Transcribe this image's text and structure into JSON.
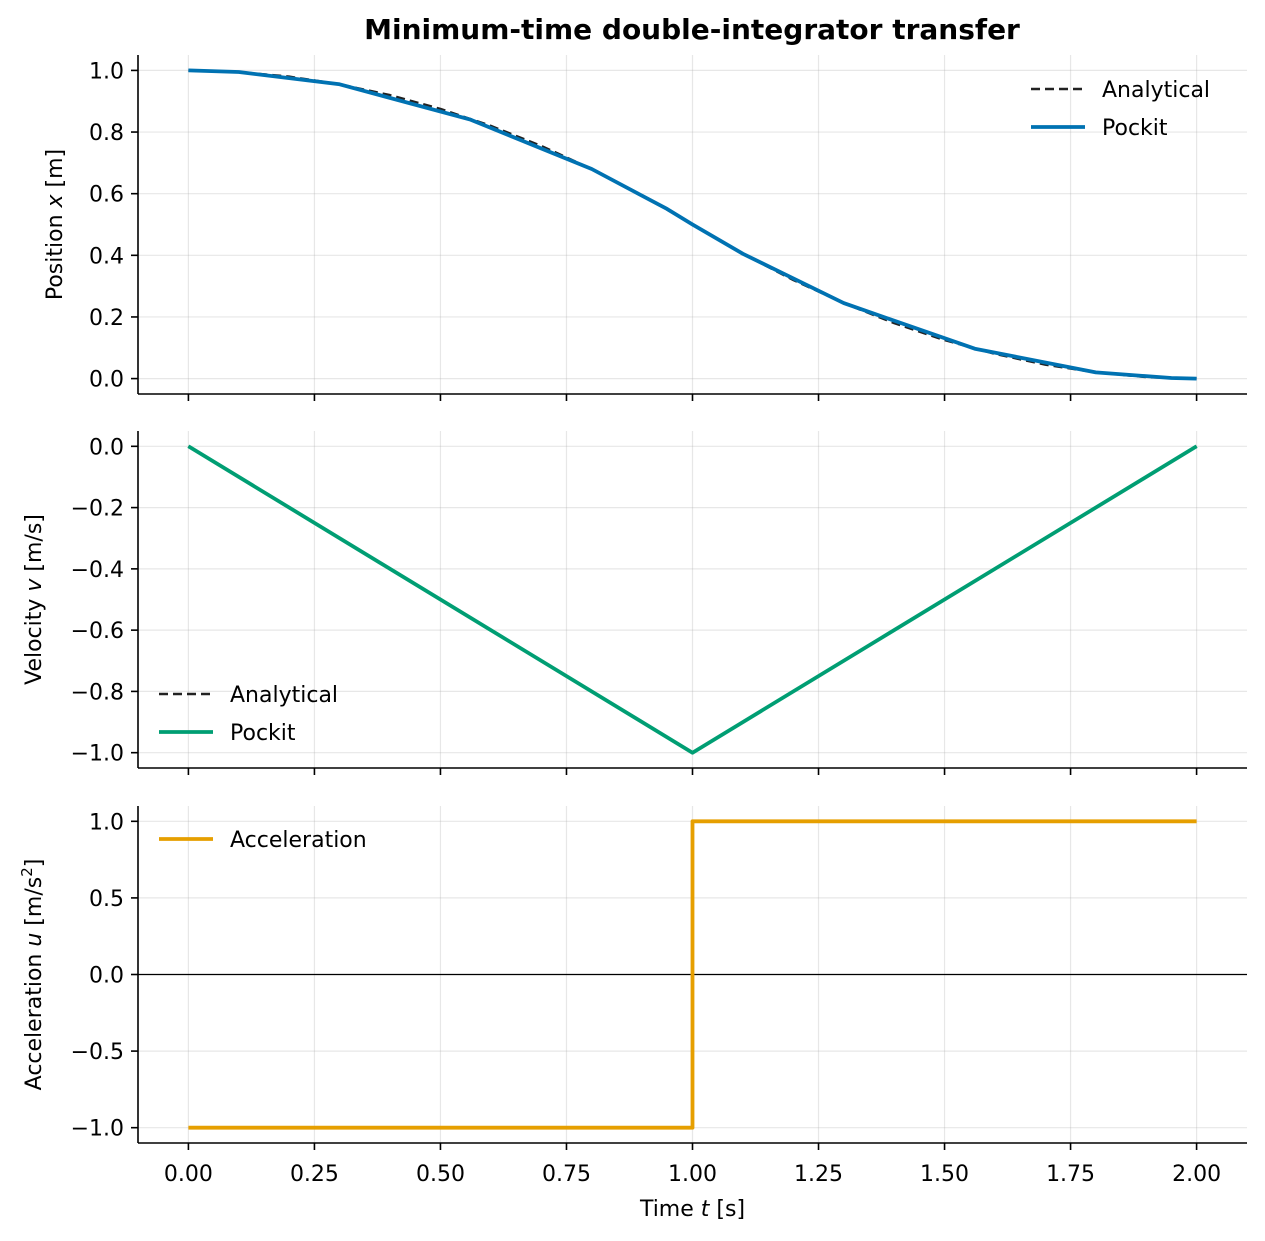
{
  "figure": {
    "title": "Minimum-time double-integrator transfer"
  },
  "chart_data": [
    {
      "type": "line",
      "name": "position",
      "title": "Minimum-time double-integrator transfer",
      "xlabel": "",
      "ylabel_prefix": "Position ",
      "ylabel_var": "x",
      "ylabel_suffix": " [m]",
      "xlim": [
        -0.1,
        2.1
      ],
      "ylim": [
        -0.05,
        1.05
      ],
      "xticks": [
        0,
        0.25,
        0.5,
        0.75,
        1.0,
        1.25,
        1.5,
        1.75,
        2.0
      ],
      "yticks": [
        0.0,
        0.2,
        0.4,
        0.6,
        0.8,
        1.0
      ],
      "ytick_labels": [
        "0.0",
        "0.2",
        "0.4",
        "0.6",
        "0.8",
        "1.0"
      ],
      "grid": true,
      "legend_position": "top-right",
      "series": [
        {
          "name": "Analytical",
          "style": "dashed",
          "color": "#222222",
          "x": [
            0,
            0.1,
            0.2,
            0.3,
            0.4,
            0.5,
            0.6,
            0.7,
            0.8,
            0.9,
            1.0,
            1.1,
            1.2,
            1.3,
            1.4,
            1.5,
            1.6,
            1.7,
            1.8,
            1.9,
            2.0
          ],
          "y": [
            1.0,
            0.995,
            0.98,
            0.955,
            0.92,
            0.875,
            0.82,
            0.755,
            0.68,
            0.595,
            0.5,
            0.405,
            0.32,
            0.245,
            0.18,
            0.125,
            0.08,
            0.045,
            0.02,
            0.005,
            0.0
          ]
        },
        {
          "name": "Pockit",
          "style": "solid",
          "color": "#0072B2",
          "x": [
            0,
            0.1,
            0.3,
            0.56,
            0.8,
            0.95,
            1.0,
            1.1,
            1.3,
            1.56,
            1.8,
            1.95,
            2.0
          ],
          "y": [
            1.0,
            0.995,
            0.955,
            0.84,
            0.68,
            0.55,
            0.5,
            0.405,
            0.245,
            0.097,
            0.02,
            0.002,
            0.0
          ]
        }
      ]
    },
    {
      "type": "line",
      "name": "velocity",
      "xlabel": "",
      "ylabel_prefix": "Velocity ",
      "ylabel_var": "v",
      "ylabel_suffix": " [m/s]",
      "xlim": [
        -0.1,
        2.1
      ],
      "ylim": [
        -1.05,
        0.05
      ],
      "xticks": [
        0,
        0.25,
        0.5,
        0.75,
        1.0,
        1.25,
        1.5,
        1.75,
        2.0
      ],
      "yticks": [
        0.0,
        -0.2,
        -0.4,
        -0.6,
        -0.8,
        -1.0
      ],
      "ytick_labels": [
        "0.0",
        "−0.2",
        "−0.4",
        "−0.6",
        "−0.8",
        "−1.0"
      ],
      "grid": true,
      "legend_position": "bottom-left",
      "series": [
        {
          "name": "Analytical",
          "style": "dashed",
          "color": "#222222",
          "x": [
            0,
            1.0,
            2.0
          ],
          "y": [
            0.0,
            -1.0,
            0.0
          ]
        },
        {
          "name": "Pockit",
          "style": "solid",
          "color": "#009E73",
          "x": [
            0,
            1.0,
            2.0
          ],
          "y": [
            0.0,
            -1.0,
            0.0
          ]
        }
      ]
    },
    {
      "type": "line",
      "name": "acceleration",
      "xlabel_prefix": "Time ",
      "xlabel_var": "t",
      "xlabel_suffix": " [s]",
      "ylabel_prefix": "Acceleration ",
      "ylabel_var": "u",
      "ylabel_suffix": " [m/s",
      "ylabel_sup": "2",
      "ylabel_end": "]",
      "xlim": [
        -0.1,
        2.1
      ],
      "ylim": [
        -1.1,
        1.1
      ],
      "xticks": [
        0,
        0.25,
        0.5,
        0.75,
        1.0,
        1.25,
        1.5,
        1.75,
        2.0
      ],
      "xtick_labels": [
        "0.00",
        "0.25",
        "0.50",
        "0.75",
        "1.00",
        "1.25",
        "1.50",
        "1.75",
        "2.00"
      ],
      "yticks": [
        1.0,
        0.5,
        0.0,
        -0.5,
        -1.0
      ],
      "ytick_labels": [
        "1.0",
        "0.5",
        "0.0",
        "−0.5",
        "−1.0"
      ],
      "grid": true,
      "zero_line": true,
      "legend_position": "top-left",
      "series": [
        {
          "name": "Acceleration",
          "style": "solid",
          "color": "#E69F00",
          "x": [
            0,
            1.0,
            1.0,
            2.0
          ],
          "y": [
            -1.0,
            -1.0,
            1.0,
            1.0
          ]
        }
      ]
    }
  ]
}
